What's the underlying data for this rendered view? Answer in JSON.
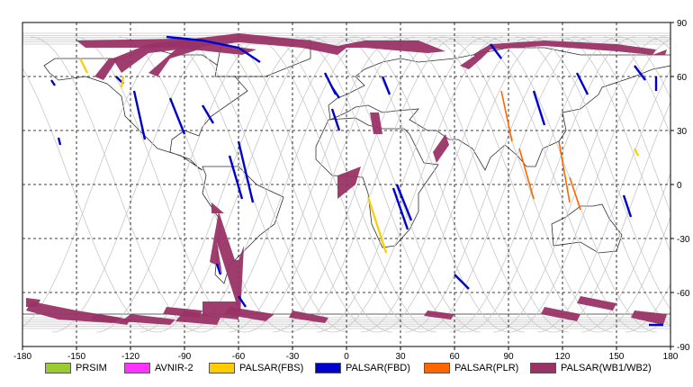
{
  "map": {
    "x_ticks": [
      "-180",
      "-150",
      "-120",
      "-90",
      "-60",
      "-30",
      "0",
      "30",
      "60",
      "90",
      "120",
      "150",
      "180"
    ],
    "y_ticks": [
      "90",
      "60",
      "30",
      "0",
      "-30",
      "-60",
      "-90"
    ],
    "lon_range": [
      -180,
      180
    ],
    "lat_range": [
      -90,
      90
    ],
    "grid": "dashed",
    "colors": {
      "grid": "#000000",
      "orbit_tracks": "#c8c8c8",
      "coastline": "#303030",
      "frame": "#000000"
    }
  },
  "legend": {
    "items": [
      {
        "label": "PRSIM",
        "color": "#99cc33"
      },
      {
        "label": "AVNIR-2",
        "color": "#ff33ff"
      },
      {
        "label": "PALSAR(FBS)",
        "color": "#ffcc00"
      },
      {
        "label": "PALSAR(FBD)",
        "color": "#0000cc"
      },
      {
        "label": "PALSAR(PLR)",
        "color": "#ff6600"
      },
      {
        "label": "PALSAR(WB1/WB2)",
        "color": "#993366"
      }
    ]
  },
  "swaths": {
    "wb": [
      [
        [
          -150,
          80
        ],
        [
          -95,
          81
        ],
        [
          -50,
          75
        ],
        [
          -58,
          72
        ],
        [
          -95,
          76
        ],
        [
          -145,
          76
        ]
      ],
      [
        [
          -130,
          70
        ],
        [
          -110,
          78
        ],
        [
          -60,
          84
        ],
        [
          -20,
          80
        ],
        [
          0,
          76
        ],
        [
          -5,
          72
        ],
        [
          -25,
          76
        ],
        [
          -60,
          79
        ],
        [
          -110,
          73
        ],
        [
          -125,
          62
        ]
      ],
      [
        [
          -140,
          60
        ],
        [
          -132,
          70
        ],
        [
          -127,
          70
        ],
        [
          -135,
          58
        ]
      ],
      [
        [
          -10,
          76
        ],
        [
          10,
          80
        ],
        [
          40,
          80
        ],
        [
          55,
          74
        ],
        [
          45,
          73
        ],
        [
          10,
          76
        ]
      ],
      [
        [
          -110,
          62
        ],
        [
          -95,
          75
        ],
        [
          -80,
          79
        ],
        [
          -82,
          75
        ],
        [
          -98,
          70
        ],
        [
          -105,
          60
        ]
      ],
      [
        [
          70,
          72
        ],
        [
          80,
          78
        ],
        [
          110,
          80
        ],
        [
          150,
          78
        ],
        [
          172,
          75
        ],
        [
          170,
          72
        ],
        [
          150,
          74
        ],
        [
          110,
          77
        ],
        [
          80,
          75
        ],
        [
          75,
          70
        ]
      ],
      [
        [
          63,
          66
        ],
        [
          72,
          72
        ],
        [
          75,
          70
        ],
        [
          68,
          64
        ]
      ],
      [
        [
          170,
          72
        ],
        [
          178,
          75
        ],
        [
          177,
          72
        ]
      ],
      [
        [
          -59,
          -73
        ],
        [
          -57,
          -34
        ],
        [
          -60,
          -42
        ],
        [
          -62,
          -42
        ],
        [
          -71,
          -15
        ],
        [
          -66,
          0
        ],
        [
          -71,
          -15
        ],
        [
          -76,
          -43
        ],
        [
          -74,
          -44
        ],
        [
          -71,
          -45
        ],
        [
          -69,
          -50
        ],
        [
          -72,
          -32
        ]
      ],
      [
        [
          -75,
          -16
        ],
        [
          -68,
          -16
        ],
        [
          -75,
          -10
        ],
        [
          -75,
          -16
        ]
      ],
      [
        [
          -175,
          -65
        ],
        [
          -150,
          -70
        ],
        [
          -125,
          -74
        ],
        [
          -130,
          -77
        ],
        [
          -160,
          -75
        ],
        [
          -178,
          -70
        ]
      ],
      [
        [
          -120,
          -72
        ],
        [
          -95,
          -75
        ],
        [
          -98,
          -78
        ],
        [
          -125,
          -76
        ]
      ],
      [
        [
          -90,
          -70
        ],
        [
          -70,
          -74
        ],
        [
          -72,
          -78
        ],
        [
          -95,
          -76
        ]
      ],
      [
        [
          -65,
          -68
        ],
        [
          -40,
          -72
        ],
        [
          -45,
          -76
        ],
        [
          -68,
          -72
        ]
      ],
      [
        [
          -30,
          -70
        ],
        [
          -10,
          -74
        ],
        [
          -12,
          -77
        ],
        [
          -32,
          -74
        ]
      ],
      [
        [
          -80,
          -65
        ],
        [
          -60,
          -65
        ],
        [
          -60,
          -75
        ],
        [
          -80,
          -73
        ]
      ],
      [
        [
          -178,
          -63
        ],
        [
          -170,
          -64
        ],
        [
          -172,
          -68
        ],
        [
          -178,
          -68
        ]
      ],
      [
        [
          130,
          -62
        ],
        [
          150,
          -66
        ],
        [
          148,
          -70
        ],
        [
          128,
          -66
        ]
      ],
      [
        [
          110,
          -68
        ],
        [
          130,
          -72
        ],
        [
          128,
          -76
        ],
        [
          108,
          -72
        ]
      ],
      [
        [
          -100,
          -68
        ],
        [
          -80,
          -70
        ],
        [
          -82,
          -74
        ],
        [
          -102,
          -72
        ]
      ],
      [
        [
          45,
          -70
        ],
        [
          60,
          -72
        ],
        [
          58,
          -75
        ],
        [
          43,
          -73
        ]
      ],
      [
        [
          160,
          -70
        ],
        [
          178,
          -72
        ],
        [
          176,
          -78
        ],
        [
          158,
          -74
        ]
      ],
      [
        [
          15,
          28
        ],
        [
          20,
          28
        ],
        [
          18,
          40
        ],
        [
          13,
          40
        ]
      ],
      [
        [
          50,
          12
        ],
        [
          57,
          22
        ],
        [
          55,
          28
        ],
        [
          48,
          18
        ]
      ],
      [
        [
          -5,
          5
        ],
        [
          8,
          10
        ],
        [
          5,
          0
        ],
        [
          -5,
          -8
        ]
      ],
      [
        [
          -140,
          -72
        ],
        [
          -120,
          -75
        ],
        [
          -122,
          -78
        ],
        [
          -142,
          -75
        ]
      ]
    ],
    "fbd": [
      [
        [
          -164,
          58
        ],
        [
          -162,
          55
        ]
      ],
      [
        [
          -160,
          26
        ],
        [
          -159,
          22
        ]
      ],
      [
        [
          -128,
          60
        ],
        [
          -124,
          56
        ]
      ],
      [
        [
          -118,
          52
        ],
        [
          -112,
          25
        ]
      ],
      [
        [
          -98,
          48
        ],
        [
          -90,
          28
        ]
      ],
      [
        [
          -100,
          82
        ],
        [
          -80,
          80
        ],
        [
          -60,
          76
        ],
        [
          -48,
          68
        ]
      ],
      [
        [
          -80,
          44
        ],
        [
          -74,
          34
        ]
      ],
      [
        [
          -60,
          24
        ],
        [
          -52,
          -10
        ]
      ],
      [
        [
          -65,
          16
        ],
        [
          -58,
          -8
        ]
      ],
      [
        [
          -72,
          -44
        ],
        [
          -70,
          -50
        ]
      ],
      [
        [
          -60,
          -62
        ],
        [
          -56,
          -68
        ]
      ],
      [
        [
          -12,
          62
        ],
        [
          -6,
          50
        ]
      ],
      [
        [
          -8,
          42
        ],
        [
          -4,
          30
        ]
      ],
      [
        [
          20,
          60
        ],
        [
          24,
          50
        ]
      ],
      [
        [
          28,
          0
        ],
        [
          36,
          -20
        ]
      ],
      [
        [
          26,
          -2
        ],
        [
          34,
          -25
        ]
      ],
      [
        [
          60,
          -50
        ],
        [
          68,
          -58
        ]
      ],
      [
        [
          80,
          78
        ],
        [
          86,
          70
        ]
      ],
      [
        [
          104,
          52
        ],
        [
          110,
          33
        ]
      ],
      [
        [
          128,
          62
        ],
        [
          134,
          50
        ]
      ],
      [
        [
          -8,
          54
        ],
        [
          -4,
          48
        ]
      ],
      [
        [
          154,
          -6
        ],
        [
          158,
          -18
        ]
      ],
      [
        [
          160,
          66
        ],
        [
          166,
          58
        ]
      ],
      [
        [
          172,
          60
        ],
        [
          172,
          52
        ]
      ],
      [
        [
          168,
          -78
        ],
        [
          176,
          -78
        ]
      ]
    ],
    "fbs": [
      [
        [
          -148,
          70
        ],
        [
          -144,
          62
        ]
      ],
      [
        [
          -125,
          54
        ],
        [
          -124,
          60
        ]
      ],
      [
        [
          12,
          -7
        ],
        [
          22,
          -38
        ]
      ],
      [
        [
          160,
          20
        ],
        [
          162,
          16
        ]
      ]
    ],
    "plr": [
      [
        [
          86,
          52
        ],
        [
          92,
          24
        ]
      ],
      [
        [
          96,
          20
        ],
        [
          104,
          -8
        ]
      ],
      [
        [
          118,
          24
        ],
        [
          124,
          -10
        ]
      ],
      [
        [
          124,
          4
        ],
        [
          130,
          -14
        ]
      ]
    ],
    "landmasses": [
      [
        [
          -168,
          66
        ],
        [
          -162,
          70
        ],
        [
          -140,
          70
        ],
        [
          -125,
          70
        ],
        [
          -110,
          76
        ],
        [
          -95,
          72
        ],
        [
          -80,
          72
        ],
        [
          -70,
          65
        ],
        [
          -62,
          60
        ],
        [
          -55,
          52
        ],
        [
          -65,
          45
        ],
        [
          -75,
          38
        ],
        [
          -80,
          32
        ],
        [
          -82,
          27
        ],
        [
          -90,
          30
        ],
        [
          -97,
          25
        ],
        [
          -98,
          18
        ],
        [
          -87,
          14
        ],
        [
          -82,
          9
        ],
        [
          -80,
          8
        ],
        [
          -92,
          16
        ],
        [
          -105,
          20
        ],
        [
          -115,
          30
        ],
        [
          -123,
          38
        ],
        [
          -125,
          49
        ],
        [
          -133,
          56
        ],
        [
          -145,
          60
        ],
        [
          -160,
          58
        ],
        [
          -165,
          62
        ]
      ],
      [
        [
          -80,
          10
        ],
        [
          -60,
          10
        ],
        [
          -50,
          0
        ],
        [
          -35,
          -7
        ],
        [
          -40,
          -22
        ],
        [
          -48,
          -28
        ],
        [
          -58,
          -38
        ],
        [
          -65,
          -45
        ],
        [
          -68,
          -55
        ],
        [
          -73,
          -50
        ],
        [
          -72,
          -40
        ],
        [
          -70,
          -20
        ],
        [
          -80,
          -5
        ],
        [
          -78,
          5
        ]
      ],
      [
        [
          -10,
          36
        ],
        [
          5,
          37
        ],
        [
          12,
          33
        ],
        [
          20,
          31
        ],
        [
          32,
          31
        ],
        [
          35,
          28
        ],
        [
          43,
          12
        ],
        [
          51,
          11
        ],
        [
          40,
          -5
        ],
        [
          40,
          -15
        ],
        [
          35,
          -25
        ],
        [
          27,
          -34
        ],
        [
          20,
          -35
        ],
        [
          14,
          -22
        ],
        [
          12,
          -5
        ],
        [
          9,
          4
        ],
        [
          -8,
          5
        ],
        [
          -17,
          14
        ],
        [
          -17,
          21
        ]
      ],
      [
        [
          -10,
          44
        ],
        [
          -9,
          36
        ],
        [
          0,
          40
        ],
        [
          5,
          43
        ],
        [
          12,
          44
        ],
        [
          20,
          40
        ],
        [
          28,
          41
        ],
        [
          40,
          42
        ],
        [
          35,
          36
        ],
        [
          45,
          30
        ],
        [
          50,
          30
        ],
        [
          57,
          25
        ],
        [
          62,
          25
        ],
        [
          70,
          20
        ],
        [
          77,
          8
        ],
        [
          80,
          15
        ],
        [
          88,
          22
        ],
        [
          95,
          16
        ],
        [
          100,
          10
        ],
        [
          105,
          10
        ],
        [
          109,
          20
        ],
        [
          118,
          24
        ],
        [
          122,
          30
        ],
        [
          120,
          40
        ],
        [
          130,
          42
        ],
        [
          140,
          50
        ],
        [
          142,
          54
        ],
        [
          160,
          60
        ],
        [
          170,
          64
        ],
        [
          180,
          66
        ],
        [
          180,
          72
        ],
        [
          150,
          72
        ],
        [
          130,
          72
        ],
        [
          110,
          76
        ],
        [
          90,
          76
        ],
        [
          70,
          72
        ],
        [
          60,
          70
        ],
        [
          40,
          68
        ],
        [
          30,
          70
        ],
        [
          20,
          68
        ],
        [
          10,
          64
        ],
        [
          5,
          60
        ],
        [
          10,
          55
        ],
        [
          0,
          50
        ],
        [
          -5,
          48
        ]
      ],
      [
        [
          114,
          -22
        ],
        [
          122,
          -18
        ],
        [
          130,
          -12
        ],
        [
          137,
          -12
        ],
        [
          142,
          -11
        ],
        [
          146,
          -19
        ],
        [
          153,
          -28
        ],
        [
          150,
          -37
        ],
        [
          140,
          -38
        ],
        [
          130,
          -32
        ],
        [
          115,
          -34
        ]
      ],
      [
        [
          -73,
          60
        ],
        [
          -45,
          60
        ],
        [
          -20,
          70
        ],
        [
          -20,
          80
        ],
        [
          -60,
          82
        ],
        [
          -70,
          76
        ]
      ],
      [
        [
          -180,
          -72
        ],
        [
          180,
          -72
        ],
        [
          180,
          -90
        ],
        [
          -180,
          -90
        ]
      ]
    ]
  }
}
